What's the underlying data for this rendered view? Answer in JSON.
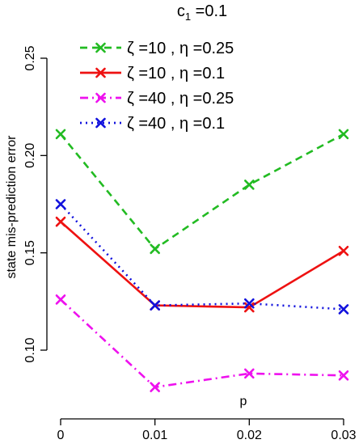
{
  "chart_data": {
    "type": "line",
    "title": "c",
    "title_subscript": "1",
    "title_suffix": " =0.1",
    "xlabel": "p",
    "ylabel": "state mis-prediction error",
    "x": [
      0,
      0.01,
      0.02,
      0.03
    ],
    "x_tick_labels": [
      "0",
      "0.01",
      "0.02",
      "0.03"
    ],
    "y_ticks": [
      0.1,
      0.15,
      0.2,
      0.25
    ],
    "y_tick_labels": [
      "0.10",
      "0.15",
      "0.20",
      "0.25"
    ],
    "xlim": [
      0,
      0.03
    ],
    "ylim": [
      0.1,
      0.25
    ],
    "grid": false,
    "legend_position": "top",
    "series": [
      {
        "name": "ζ =10 , η =0.25",
        "color": "#22bb22",
        "dash": "dashed",
        "values": [
          0.211,
          0.152,
          0.185,
          0.211
        ]
      },
      {
        "name": "ζ =10 , η =0.1",
        "color": "#ee1111",
        "dash": "solid",
        "values": [
          0.166,
          0.123,
          0.122,
          0.151
        ]
      },
      {
        "name": "ζ =40 , η =0.25",
        "color": "#ee11ee",
        "dash": "dashdot",
        "values": [
          0.126,
          0.081,
          0.088,
          0.087
        ]
      },
      {
        "name": "ζ =40 , η =0.1",
        "color": "#1111dd",
        "dash": "dotted",
        "values": [
          0.175,
          0.123,
          0.124,
          0.121
        ]
      }
    ]
  }
}
